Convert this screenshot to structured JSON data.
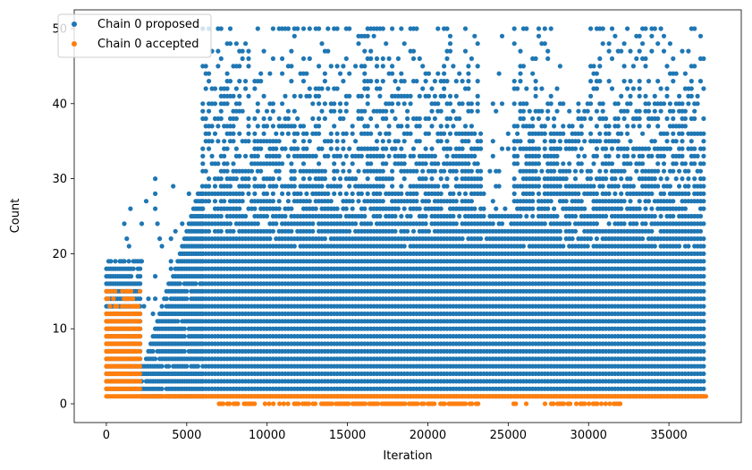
{
  "chart_data": {
    "type": "scatter",
    "title": "",
    "xlabel": "Iteration",
    "ylabel": "Count",
    "xlim": [
      -2000,
      39500
    ],
    "ylim": [
      -2.5,
      52.5
    ],
    "xticks": [
      0,
      5000,
      10000,
      15000,
      20000,
      25000,
      30000,
      35000
    ],
    "yticks": [
      0,
      10,
      20,
      30,
      40,
      50
    ],
    "legend_position": "upper-left",
    "grid": false,
    "series": [
      {
        "name": "Chain 0 proposed",
        "color": "#1f77b4",
        "segments": [
          {
            "x_start": 0,
            "x_end": 2100,
            "y_min": 2,
            "y_max": 19,
            "y_outliers": [
              21,
              22,
              24,
              26
            ]
          },
          {
            "x_start": 2200,
            "x_end": 6000,
            "y_min": 1,
            "y_max": 30
          },
          {
            "x_start": 6000,
            "x_end": 37300,
            "y_min": 1,
            "y_max": 50
          }
        ]
      },
      {
        "name": "Chain 0 accepted",
        "color": "#ff7f0e",
        "segments": [
          {
            "x_start": 0,
            "x_end": 2100,
            "y_min": 1,
            "y_max": 15
          },
          {
            "x_start": 2200,
            "x_end": 37300,
            "y_min": 0,
            "y_max": 1
          }
        ]
      }
    ]
  }
}
